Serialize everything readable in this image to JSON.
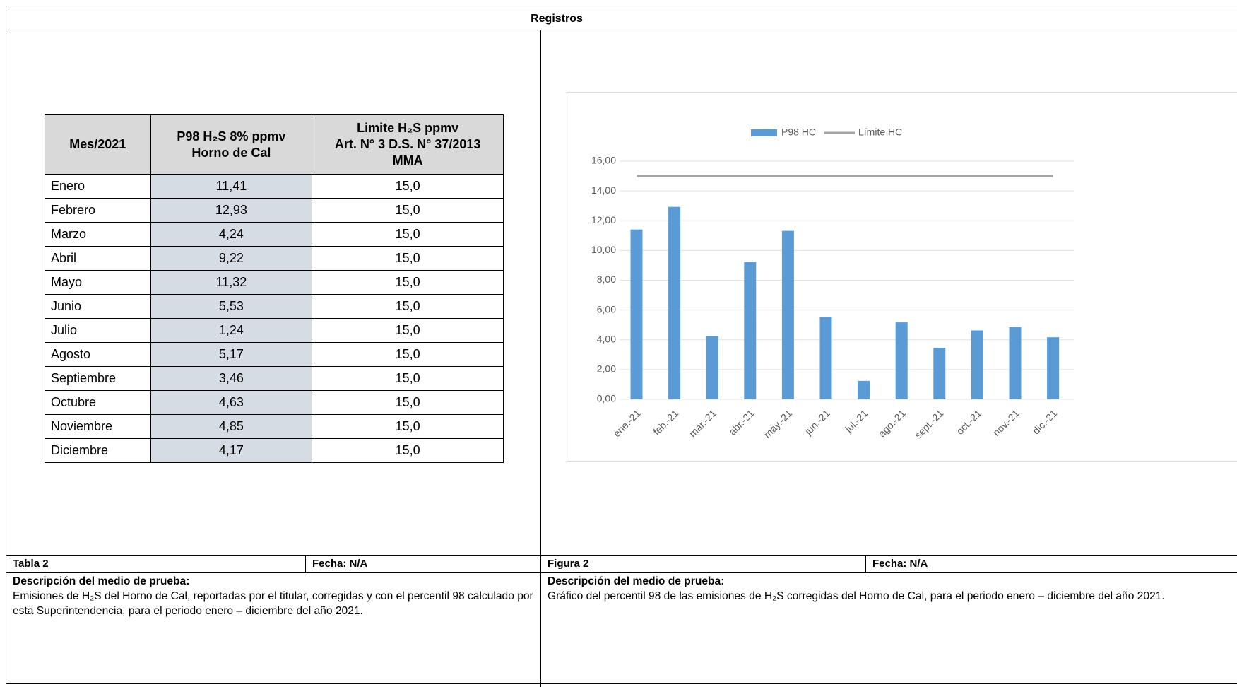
{
  "header": {
    "title": "Registros"
  },
  "table": {
    "columns": [
      [
        "Mes/2021"
      ],
      [
        "P98 H₂S 8% ppmv",
        "Horno de Cal"
      ],
      [
        "Limite H₂S ppmv",
        "Art. N° 3 D.S. N° 37/2013",
        "MMA"
      ]
    ],
    "rows": [
      [
        "Enero",
        "11,41",
        "15,0"
      ],
      [
        "Febrero",
        "12,93",
        "15,0"
      ],
      [
        "Marzo",
        "4,24",
        "15,0"
      ],
      [
        "Abril",
        "9,22",
        "15,0"
      ],
      [
        "Mayo",
        "11,32",
        "15,0"
      ],
      [
        "Junio",
        "5,53",
        "15,0"
      ],
      [
        "Julio",
        "1,24",
        "15,0"
      ],
      [
        "Agosto",
        "5,17",
        "15,0"
      ],
      [
        "Septiembre",
        "3,46",
        "15,0"
      ],
      [
        "Octubre",
        "4,63",
        "15,0"
      ],
      [
        "Noviembre",
        "4,85",
        "15,0"
      ],
      [
        "Diciembre",
        "4,17",
        "15,0"
      ]
    ]
  },
  "left_footer": {
    "caption": "Tabla 2",
    "date": "Fecha: N/A",
    "description_title": "Descripción del medio de prueba:",
    "description": "Emisiones de H₂S del Horno de Cal, reportadas por el titular, corregidas y con el percentil 98 calculado por esta Superintendencia, para el periodo enero – diciembre del año 2021."
  },
  "right_footer": {
    "caption": "Figura 2",
    "date": "Fecha: N/A",
    "description_title": "Descripción del medio de prueba:",
    "description": "Gráfico del percentil 98 de las emisiones de H₂S corregidas del Horno de Cal, para el periodo enero – diciembre del año 2021."
  },
  "chart_data": {
    "type": "bar",
    "categories": [
      "ene.-21",
      "feb.-21",
      "mar.-21",
      "abr.-21",
      "may.-21",
      "jun.-21",
      "jul.-21",
      "ago.-21",
      "sept.-21",
      "oct.-21",
      "nov.-21",
      "dic.-21"
    ],
    "series": [
      {
        "name": "P98 HC",
        "type": "bar",
        "color": "#5b9bd5",
        "values": [
          11.41,
          12.93,
          4.24,
          9.22,
          11.32,
          5.53,
          1.24,
          5.17,
          3.46,
          4.63,
          4.85,
          4.17
        ]
      },
      {
        "name": "Límite HC",
        "type": "line",
        "color": "#a5a5a5",
        "values": [
          15,
          15,
          15,
          15,
          15,
          15,
          15,
          15,
          15,
          15,
          15,
          15
        ]
      }
    ],
    "ylim": [
      0,
      16
    ],
    "yticks": [
      {
        "value": 0,
        "label": "0,00"
      },
      {
        "value": 2,
        "label": "2,00"
      },
      {
        "value": 4,
        "label": "4,00"
      },
      {
        "value": 6,
        "label": "6,00"
      },
      {
        "value": 8,
        "label": "8,00"
      },
      {
        "value": 10,
        "label": "10,00"
      },
      {
        "value": 12,
        "label": "12,00"
      },
      {
        "value": 14,
        "label": "14,00"
      },
      {
        "value": 16,
        "label": "16,00"
      }
    ],
    "grid": true,
    "legend": "top"
  }
}
